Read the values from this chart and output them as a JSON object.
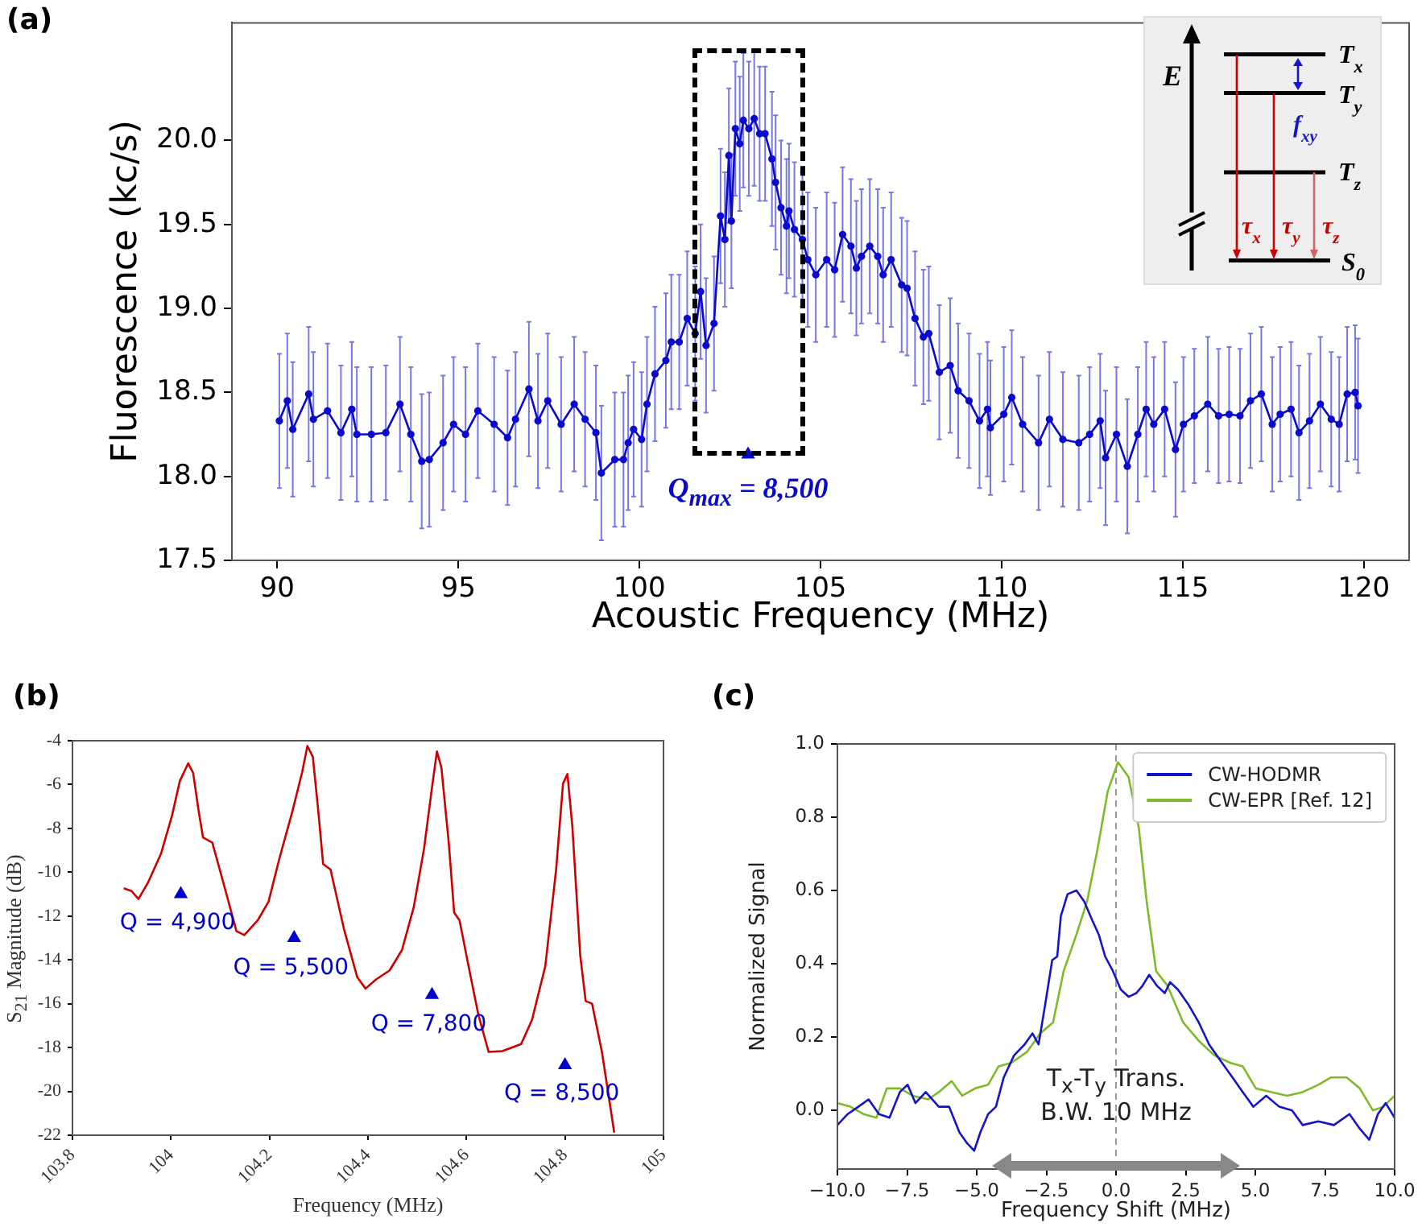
{
  "chart_data": [
    {
      "type": "line",
      "title": "(a)",
      "xlabel": "Acoustic Frequency (MHz)",
      "ylabel": "Fluorescence (kc/s)",
      "xlim": [
        88.75,
        121.25
      ],
      "ylim": [
        17.5,
        20.7
      ],
      "xticks": [
        90,
        95,
        100,
        105,
        110,
        115,
        120
      ],
      "yticks": [
        17.5,
        {
          "value": 18,
          "label": "18.0"
        },
        18.5,
        {
          "value": 19,
          "label": "19.0"
        },
        19.5,
        {
          "value": 20,
          "label": "20.0"
        }
      ],
      "series": [
        {
          "type": "line",
          "color": "#0a0acd",
          "marker": "circle",
          "x": [
            90.06,
            90.28,
            90.43,
            90.87,
            91.0,
            91.39,
            91.76,
            92.06,
            92.2,
            92.6,
            93.0,
            93.39,
            93.69,
            93.99,
            94.2,
            94.58,
            94.87,
            95.2,
            95.54,
            95.99,
            96.36,
            96.58,
            96.95,
            97.2,
            97.47,
            97.84,
            98.2,
            98.5,
            98.8,
            98.95,
            99.32,
            99.56,
            99.69,
            99.84,
            100.06,
            100.21,
            100.43,
            100.73,
            100.88,
            101.1,
            101.32,
            101.54,
            101.69,
            101.84,
            102.06,
            102.24,
            102.36,
            102.47,
            102.54,
            102.65,
            102.77,
            102.87,
            103.02,
            103.17,
            103.32,
            103.47,
            103.66,
            103.76,
            103.91,
            104.06,
            104.13,
            104.28,
            104.5,
            104.65,
            104.87,
            105.17,
            105.39,
            105.61,
            105.84,
            105.99,
            106.13,
            106.36,
            106.58,
            106.73,
            106.95,
            107.24,
            107.39,
            107.61,
            107.84,
            107.99,
            108.28,
            108.58,
            108.8,
            109.1,
            109.39,
            109.61,
            109.69,
            110.06,
            110.28,
            110.58,
            111.02,
            111.32,
            111.69,
            112.13,
            112.43,
            112.72,
            112.87,
            113.17,
            113.47,
            113.76,
            113.99,
            114.2,
            114.5,
            114.8,
            115.02,
            115.32,
            115.69,
            115.99,
            116.28,
            116.58,
            116.87,
            117.17,
            117.47,
            117.69,
            117.99,
            118.21,
            118.5,
            118.8,
            119.1,
            119.32,
            119.54,
            119.76,
            119.84
          ],
          "values": [
            18.33,
            18.45,
            18.28,
            18.49,
            18.34,
            18.39,
            18.26,
            18.4,
            18.25,
            18.25,
            18.26,
            18.43,
            18.25,
            18.09,
            18.1,
            18.2,
            18.31,
            18.25,
            18.39,
            18.31,
            18.23,
            18.34,
            18.52,
            18.33,
            18.45,
            18.31,
            18.43,
            18.34,
            18.26,
            18.02,
            18.1,
            18.1,
            18.2,
            18.28,
            18.22,
            18.43,
            18.61,
            18.69,
            18.8,
            18.8,
            18.94,
            18.85,
            19.1,
            18.78,
            18.91,
            19.55,
            19.41,
            19.91,
            19.52,
            20.07,
            19.98,
            20.12,
            20.07,
            20.13,
            20.04,
            20.04,
            19.89,
            19.75,
            19.6,
            19.49,
            19.58,
            19.47,
            19.41,
            19.29,
            19.2,
            19.29,
            19.23,
            19.44,
            19.37,
            19.24,
            19.31,
            19.37,
            19.31,
            19.2,
            19.29,
            19.14,
            19.12,
            18.94,
            18.83,
            18.85,
            18.62,
            18.66,
            18.51,
            18.45,
            18.33,
            18.4,
            18.29,
            18.37,
            18.47,
            18.31,
            18.2,
            18.34,
            18.22,
            18.2,
            18.25,
            18.33,
            18.11,
            18.25,
            18.06,
            18.25,
            18.4,
            18.31,
            18.4,
            18.16,
            18.31,
            18.36,
            18.43,
            18.36,
            18.37,
            18.36,
            18.45,
            18.49,
            18.31,
            18.37,
            18.4,
            18.26,
            18.33,
            18.43,
            18.34,
            18.31,
            18.49,
            18.5,
            18.42
          ],
          "errors": [
            0.4,
            0.4,
            0.4,
            0.4,
            0.4,
            0.4,
            0.4,
            0.4,
            0.4,
            0.4,
            0.4,
            0.4,
            0.4,
            0.4,
            0.4,
            0.4,
            0.4,
            0.4,
            0.4,
            0.4,
            0.4,
            0.4,
            0.4,
            0.4,
            0.4,
            0.4,
            0.4,
            0.4,
            0.4,
            0.4,
            0.4,
            0.4,
            0.4,
            0.4,
            0.4,
            0.4,
            0.4,
            0.4,
            0.4,
            0.4,
            0.4,
            0.4,
            0.4,
            0.4,
            0.4,
            0.4,
            0.4,
            0.4,
            0.4,
            0.4,
            0.4,
            0.4,
            0.4,
            0.4,
            0.4,
            0.4,
            0.4,
            0.4,
            0.4,
            0.4,
            0.4,
            0.4,
            0.4,
            0.4,
            0.4,
            0.4,
            0.4,
            0.4,
            0.4,
            0.4,
            0.4,
            0.4,
            0.4,
            0.4,
            0.4,
            0.4,
            0.4,
            0.4,
            0.4,
            0.4,
            0.4,
            0.4,
            0.4,
            0.4,
            0.4,
            0.4,
            0.4,
            0.4,
            0.4,
            0.4,
            0.4,
            0.4,
            0.4,
            0.4,
            0.4,
            0.4,
            0.4,
            0.4,
            0.4,
            0.4,
            0.4,
            0.4,
            0.4,
            0.4,
            0.4,
            0.4,
            0.4,
            0.4,
            0.4,
            0.4,
            0.4,
            0.4,
            0.4,
            0.4,
            0.4,
            0.4,
            0.4,
            0.4,
            0.4,
            0.4,
            0.4,
            0.4,
            0.4
          ]
        },
        {
          "type": "scatter",
          "color": "#0a0acd",
          "marker": "triangle",
          "x": [
            103.0
          ],
          "values": [
            18.13
          ]
        }
      ],
      "annotations": [
        {
          "text": "Q$_{max}$ = 8,500",
          "x": 103.0,
          "y": 18.13
        },
        "E",
        "T$_{x}$",
        "T$_{y}$",
        "T$_{z}$",
        "S$_{0}$",
        "f$_{xy}$",
        "τ$_{x}$",
        "τ$_{y}$",
        "τ$_{z}$"
      ]
    },
    {
      "type": "line",
      "title": "(b)",
      "xlabel": "Frequency (MHz)",
      "ylabel": "S$_{21}$ Magnitude (dB)",
      "xlim": [
        103.8,
        105
      ],
      "ylim": [
        -22,
        -4
      ],
      "xticks": [
        103.8,
        104,
        104.2,
        104.4,
        104.6,
        104.8,
        105
      ],
      "yticks": [
        -22,
        -20,
        -18,
        -16,
        -14,
        -12,
        -10,
        -8,
        -6,
        -4
      ],
      "series": [
        {
          "type": "line",
          "color": "#cc0000",
          "marker": "none",
          "x": [
            103.904,
            103.92,
            103.934,
            103.953,
            103.98,
            104.002,
            104.018,
            104.035,
            104.045,
            104.056,
            104.065,
            104.084,
            104.111,
            104.133,
            104.149,
            104.176,
            104.198,
            104.22,
            104.247,
            104.266,
            104.277,
            104.288,
            104.299,
            104.309,
            104.324,
            104.351,
            104.378,
            104.395,
            104.416,
            104.444,
            104.469,
            104.493,
            104.514,
            104.531,
            104.54,
            104.549,
            104.564,
            104.575,
            104.586,
            104.602,
            104.624,
            104.645,
            104.673,
            104.711,
            104.733,
            104.76,
            104.782,
            104.796,
            104.805,
            104.815,
            104.831,
            104.842,
            104.855,
            104.875,
            104.9
          ],
          "values": [
            -10.73,
            -10.86,
            -11.22,
            -10.49,
            -9.14,
            -7.43,
            -5.84,
            -5.03,
            -5.47,
            -7.18,
            -8.41,
            -8.65,
            -10.86,
            -12.69,
            -12.87,
            -12.2,
            -11.35,
            -9.39,
            -7.18,
            -5.47,
            -4.24,
            -4.73,
            -7.18,
            -9.63,
            -9.88,
            -12.57,
            -14.78,
            -15.31,
            -14.9,
            -14.48,
            -13.55,
            -11.59,
            -8.9,
            -5.96,
            -4.49,
            -5.22,
            -8.65,
            -11.84,
            -12.2,
            -14.04,
            -16.49,
            -18.2,
            -18.16,
            -17.84,
            -16.74,
            -14.29,
            -9.88,
            -5.96,
            -5.52,
            -7.92,
            -13.8,
            -15.88,
            -16.0,
            -18.2,
            -21.88
          ]
        },
        {
          "type": "scatter",
          "color": "#0000cc",
          "marker": "triangle",
          "x": [
            104.02,
            104.25,
            104.53,
            104.8
          ],
          "values": [
            -11,
            -13,
            -15.6,
            -18.8
          ]
        }
      ],
      "annotations": [
        {
          "text": "Q = 4,900",
          "x": 104.02,
          "y": -11
        },
        {
          "text": "Q = 5,500",
          "x": 104.25,
          "y": -13
        },
        {
          "text": "Q = 7,800",
          "x": 104.53,
          "y": -15.6
        },
        {
          "text": "Q = 8,500",
          "x": 104.8,
          "y": -18.8
        }
      ]
    },
    {
      "type": "line",
      "title": "(c)",
      "xlabel": "Frequency Shift (MHz)",
      "ylabel": "Normalized Signal",
      "xlim": [
        -10,
        10
      ],
      "ylim": [
        -0.16,
        1.0
      ],
      "xticks": [
        {
          "value": -10,
          "label": "−10.0"
        },
        {
          "value": -7.5,
          "label": "−7.5"
        },
        {
          "value": -5,
          "label": "−5.0"
        },
        {
          "value": -2.5,
          "label": "−2.5"
        },
        {
          "value": 0,
          "label": "0.0"
        },
        {
          "value": 2.5,
          "label": "2.5"
        },
        {
          "value": 5,
          "label": "5.0"
        },
        {
          "value": 7.5,
          "label": "7.5"
        },
        {
          "value": 10,
          "label": "10.0"
        }
      ],
      "yticks": [
        {
          "value": 0,
          "label": "0.0"
        },
        0.2,
        0.4,
        0.6,
        0.8,
        {
          "value": 1,
          "label": "1.0"
        }
      ],
      "legend": "top right",
      "series": [
        {
          "type": "line",
          "name": "CW-HODMR",
          "color": "#1515c8",
          "marker": "none",
          "x": [
            -10,
            -9.63,
            -9.25,
            -8.88,
            -8.51,
            -8.13,
            -7.76,
            -7.48,
            -7.2,
            -6.83,
            -6.36,
            -5.99,
            -5.62,
            -5.34,
            -5.09,
            -4.87,
            -4.59,
            -4.31,
            -4.03,
            -3.66,
            -3.28,
            -3.0,
            -2.78,
            -2.54,
            -2.29,
            -2.11,
            -1.98,
            -1.74,
            -1.42,
            -1.14,
            -0.86,
            -0.62,
            -0.39,
            -0.11,
            0.17,
            0.45,
            0.73,
            0.95,
            1.19,
            1.47,
            1.75,
            1.94,
            2.22,
            2.59,
            2.97,
            3.34,
            3.71,
            4.18,
            4.55,
            4.93,
            5.39,
            5.86,
            6.32,
            6.7,
            7.26,
            7.82,
            8.38,
            8.75,
            9.09,
            9.4,
            9.68,
            10.0
          ],
          "values": [
            -0.04,
            -0.01,
            0.01,
            0.03,
            -0.01,
            -0.02,
            0.05,
            0.07,
            0.02,
            0.05,
            0.01,
            0.01,
            -0.06,
            -0.09,
            -0.11,
            -0.06,
            -0.01,
            0.01,
            0.09,
            0.15,
            0.18,
            0.21,
            0.18,
            0.29,
            0.41,
            0.42,
            0.53,
            0.59,
            0.6,
            0.57,
            0.52,
            0.48,
            0.42,
            0.38,
            0.33,
            0.31,
            0.32,
            0.34,
            0.37,
            0.34,
            0.32,
            0.35,
            0.33,
            0.29,
            0.24,
            0.18,
            0.14,
            0.09,
            0.05,
            0.01,
            0.04,
            0.01,
            0.0,
            -0.04,
            -0.03,
            -0.04,
            -0.01,
            -0.05,
            -0.08,
            -0.01,
            0.02,
            -0.02
          ]
        },
        {
          "type": "line",
          "name": "CW-EPR [Ref. 12]",
          "color": "#7fba2a",
          "marker": "none",
          "x": [
            -10,
            -9.53,
            -9.07,
            -8.6,
            -8.23,
            -7.76,
            -7.29,
            -6.74,
            -6.36,
            -5.9,
            -5.52,
            -5.06,
            -4.59,
            -4.22,
            -3.75,
            -3.19,
            -2.72,
            -2.26,
            -1.88,
            -1.42,
            -1.04,
            -0.67,
            -0.3,
            0.07,
            0.45,
            0.82,
            1.1,
            1.44,
            1.85,
            2.41,
            2.97,
            3.53,
            4.09,
            4.55,
            5.02,
            5.58,
            6.14,
            6.7,
            7.26,
            7.72,
            8.28,
            8.75,
            9.22,
            9.59,
            10.0
          ],
          "values": [
            0.02,
            0.01,
            -0.01,
            -0.02,
            0.06,
            0.06,
            0.04,
            0.03,
            0.05,
            0.08,
            0.04,
            0.06,
            0.07,
            0.12,
            0.13,
            0.16,
            0.21,
            0.24,
            0.38,
            0.48,
            0.57,
            0.71,
            0.87,
            0.95,
            0.91,
            0.77,
            0.57,
            0.38,
            0.34,
            0.24,
            0.19,
            0.15,
            0.13,
            0.12,
            0.06,
            0.05,
            0.04,
            0.05,
            0.07,
            0.09,
            0.09,
            0.06,
            0.0,
            0.01,
            0.04
          ]
        }
      ],
      "ref_lines": [
        {
          "axis": "x",
          "value": 0,
          "color": "#999999",
          "line_style": "dashed"
        }
      ],
      "annotations": [
        {
          "text": "T$_{x}$-T$_{y}$ Trans.\nB.W. 10 MHz",
          "x": 0,
          "y": 0.04
        }
      ]
    }
  ]
}
